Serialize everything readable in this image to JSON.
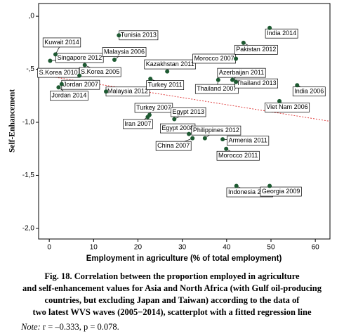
{
  "chart_data": {
    "type": "scatter",
    "x_label": "Employment in agriculture (% of total employment)",
    "y_label": "Self-Enhancement",
    "color": "#1e5a32",
    "point_labels": [
      "Kuwait 2014",
      "Singapore 2012",
      "S.Korea 2010",
      "S.Korea 2005",
      "Jordan 2007",
      "Jordan 2014",
      "Tunisia 2013",
      "Malaysia 2006",
      "Malaysia 2012",
      "Kazakhstan 2011",
      "Turkey 2011",
      "Turkey 2007",
      "Iran 2007",
      "Egypt 2013",
      "Egypt 2008",
      "China 2007",
      "Philippines 2012",
      "Armenia 2011",
      "Morocco 2011",
      "Morocco 2007",
      "Pakistan 2012",
      "India 2014",
      "Azerbaijan 2011",
      "Thailand 2007",
      "Thailand 2013",
      "India 2006",
      "Viet Nam 2006",
      "Indonesia 2006",
      "Georgia 2009"
    ],
    "x": [
      1.4,
      0.2,
      6.8,
      8.0,
      2.8,
      2.1,
      15.7,
      14.7,
      12.8,
      26.6,
      22.8,
      22.6,
      22.2,
      28.2,
      31.5,
      32.3,
      35.1,
      39.1,
      39.9,
      42.1,
      43.8,
      49.7,
      41.3,
      38.1,
      42.1,
      55.9,
      51.9,
      42.2,
      49.7
    ],
    "values": [
      -0.36,
      -0.42,
      -0.56,
      -0.46,
      -0.64,
      -0.67,
      -0.18,
      -0.41,
      -0.71,
      -0.52,
      -0.59,
      -0.93,
      -0.95,
      -0.97,
      -1.11,
      -1.15,
      -1.15,
      -1.16,
      -1.25,
      -0.4,
      -0.25,
      -0.11,
      -0.6,
      -0.6,
      -0.62,
      -0.65,
      -0.8,
      -1.6,
      -1.6
    ],
    "fit_line": {
      "x": [
        -2.4,
        63.3
      ],
      "values": [
        -0.55,
        -0.99
      ],
      "color": "#e04040"
    },
    "xlim": [
      -2.4,
      63.3
    ],
    "ylim": [
      -2.1,
      0.12
    ],
    "xticks": [
      0,
      10,
      20,
      30,
      40,
      50,
      60
    ],
    "yticks": [
      {
        "value": 0,
        "label": ",0"
      },
      {
        "value": -0.5,
        "label": "-,5"
      },
      {
        "value": -1,
        "label": "-1,0"
      },
      {
        "value": -1.5,
        "label": "-1,5"
      },
      {
        "value": -2,
        "label": "-2,0"
      }
    ],
    "grid": false
  },
  "caption": [
    "Fig. 18. Correlation between the proportion employed in agriculture",
    "and self-enhancement values for Asia and North Africa (with Gulf oil-producing",
    "countries, but excluding Japan and Taiwan) according to the data of",
    "two latest WVS waves (2005−2014), scatterplot with a fitted regression line"
  ],
  "note_label": "Note:",
  "note_text": "r = –0.333, p = 0.078."
}
